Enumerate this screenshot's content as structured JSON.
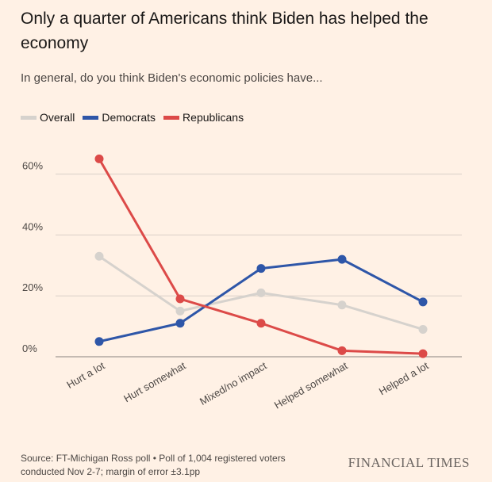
{
  "title": "Only a quarter of Americans think Biden has helped the economy",
  "subtitle": "In general, do you think Biden's economic policies have...",
  "source": "Source: FT-Michigan Ross poll • Poll of 1,004 registered voters conducted Nov 2-7; margin of error ±3.1pp",
  "brand": "FINANCIAL TIMES",
  "colors": {
    "background": "#fff1e5",
    "overall": "#d6d2cd",
    "democrats": "#2e56a8",
    "republicans": "#dc4a48",
    "grid": "#d9cfc7"
  },
  "chart_data": {
    "type": "line",
    "categories": [
      "Hurt a lot",
      "Hurt somewhat",
      "Mixed/no impact",
      "Helped somewhat",
      "Helped a lot"
    ],
    "series": [
      {
        "name": "Overall",
        "color": "#d6d2cd",
        "values": [
          33,
          15,
          21,
          17,
          9
        ]
      },
      {
        "name": "Democrats",
        "color": "#2e56a8",
        "values": [
          5,
          11,
          29,
          32,
          18
        ]
      },
      {
        "name": "Republicans",
        "color": "#dc4a48",
        "values": [
          65,
          19,
          11,
          2,
          1
        ]
      }
    ],
    "ylim": [
      0,
      65
    ],
    "yticks": [
      0,
      20,
      40,
      60
    ],
    "ytick_labels": [
      "0%",
      "20%",
      "40%",
      "60%"
    ],
    "legend_position": "top-left",
    "grid": true
  }
}
